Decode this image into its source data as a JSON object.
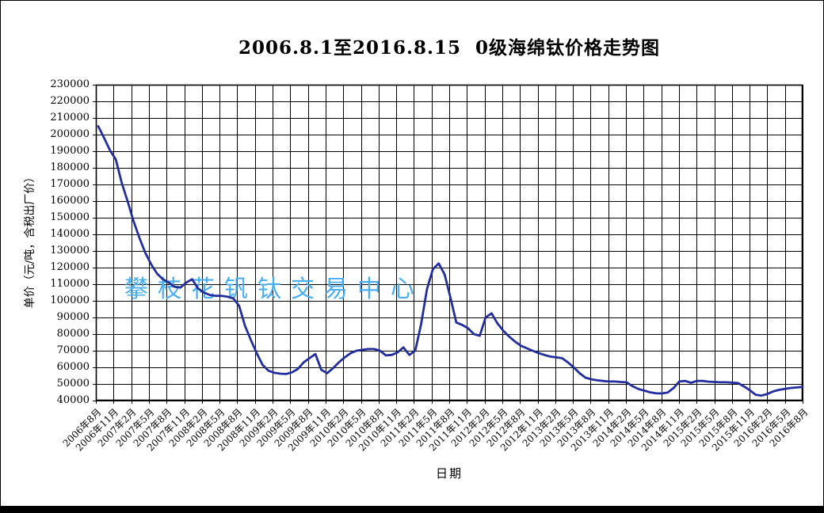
{
  "page": {
    "background": "#ffffff",
    "border_color": "#000000",
    "bottom_bar_color": "#000000"
  },
  "chart": {
    "title": "2006.8.1至2016.8.15  0级海绵钛价格走势图",
    "x_axis_title": "日期",
    "y_axis_title": "单价（元/吨，含税出厂价）",
    "watermark": {
      "text": "攀枝花钒钛交易中心",
      "color": "#49AFF2"
    }
  },
  "chart_data": {
    "type": "line",
    "title": "2006.8.1至2016.8.15  0级海绵钛价格走势图",
    "xlabel": "日期",
    "ylabel": "单价（元/吨，含税出厂价）",
    "ylim": [
      40000,
      230000
    ],
    "ytick_interval": 10000,
    "grid": "both",
    "legend": "none",
    "line_color": "#222E9E",
    "grid_color": "#000000",
    "y_tick_labels": [
      "230000",
      "220000",
      "210000",
      "200000",
      "190000",
      "180000",
      "170000",
      "160000",
      "150000",
      "140000",
      "130000",
      "120000",
      "110000",
      "100000",
      "90000",
      "80000",
      "70000",
      "60000",
      "50000",
      "40000"
    ],
    "x_tick_labels": [
      "2006年8月",
      "2006年11月",
      "2007年2月",
      "2007年5月",
      "2007年8月",
      "2007年11月",
      "2008年2月",
      "2008年5月",
      "2008年8月",
      "2008年11月",
      "2009年2月",
      "2009年5月",
      "2009年8月",
      "2009年11月",
      "2010年2月",
      "2010年5月",
      "2010年8月",
      "2010年11月",
      "2011年2月",
      "2011年5月",
      "2011年8月",
      "2011年11月",
      "2012年2月",
      "2012年5月",
      "2012年8月",
      "2012年11月",
      "2013年2月",
      "2013年5月",
      "2013年8月",
      "2013年11月",
      "2014年2月",
      "2014年5月",
      "2014年8月",
      "2014年11月",
      "2015年2月",
      "2015年5月",
      "2015年8月",
      "2015年11月",
      "2016年2月",
      "2016年5月",
      "2016年8月"
    ],
    "series": [
      {
        "name": "0级海绵钛价格",
        "x": [
          "2006-08",
          "2006-09",
          "2006-10",
          "2006-11",
          "2006-12",
          "2007-01",
          "2007-02",
          "2007-03",
          "2007-04",
          "2007-05",
          "2007-06",
          "2007-07",
          "2007-08",
          "2007-09",
          "2007-10",
          "2007-11",
          "2007-12",
          "2008-01",
          "2008-02",
          "2008-03",
          "2008-04",
          "2008-05",
          "2008-06",
          "2008-07",
          "2008-08",
          "2008-09",
          "2008-10",
          "2008-11",
          "2008-12",
          "2009-01",
          "2009-02",
          "2009-03",
          "2009-04",
          "2009-05",
          "2009-06",
          "2009-07",
          "2009-08",
          "2009-09",
          "2009-10",
          "2009-11",
          "2009-12",
          "2010-01",
          "2010-02",
          "2010-03",
          "2010-04",
          "2010-05",
          "2010-06",
          "2010-07",
          "2010-08",
          "2010-09",
          "2010-10",
          "2010-11",
          "2010-12",
          "2011-01",
          "2011-02",
          "2011-03",
          "2011-04",
          "2011-05",
          "2011-06",
          "2011-07",
          "2011-08",
          "2011-09",
          "2011-10",
          "2011-11",
          "2011-12",
          "2012-01",
          "2012-02",
          "2012-03",
          "2012-04",
          "2012-05",
          "2012-06",
          "2012-07",
          "2012-08",
          "2012-09",
          "2012-10",
          "2012-11",
          "2012-12",
          "2013-01",
          "2013-02",
          "2013-03",
          "2013-04",
          "2013-05",
          "2013-06",
          "2013-07",
          "2013-08",
          "2013-09",
          "2013-10",
          "2013-11",
          "2013-12",
          "2014-01",
          "2014-02",
          "2014-03",
          "2014-04",
          "2014-05",
          "2014-06",
          "2014-07",
          "2014-08",
          "2014-09",
          "2014-10",
          "2014-11",
          "2014-12",
          "2015-01",
          "2015-02",
          "2015-03",
          "2015-04",
          "2015-05",
          "2015-06",
          "2015-07",
          "2015-08",
          "2015-09",
          "2015-10",
          "2015-11",
          "2015-12",
          "2016-01",
          "2016-02",
          "2016-03",
          "2016-04",
          "2016-05",
          "2016-06",
          "2016-07",
          "2016-08"
        ],
        "values": [
          205000,
          198000,
          190500,
          185000,
          171000,
          160000,
          148000,
          138000,
          129000,
          122000,
          116500,
          113000,
          111000,
          108500,
          108000,
          111000,
          113000,
          107500,
          105000,
          103500,
          103000,
          103000,
          102500,
          101500,
          97000,
          85000,
          76500,
          68500,
          61500,
          58000,
          56700,
          56200,
          56000,
          57000,
          59000,
          63000,
          65500,
          68000,
          58500,
          56500,
          59500,
          63000,
          66000,
          68500,
          70000,
          70500,
          71000,
          71000,
          70000,
          67200,
          67500,
          69000,
          72000,
          67500,
          70000,
          86000,
          107000,
          119000,
          122500,
          116000,
          102000,
          87000,
          85500,
          83500,
          80000,
          79000,
          90000,
          92500,
          86500,
          82000,
          78500,
          75500,
          73000,
          71500,
          70000,
          68600,
          67500,
          66500,
          66000,
          65500,
          63000,
          60000,
          56500,
          53800,
          52800,
          52200,
          51800,
          51500,
          51500,
          51200,
          51000,
          48700,
          47000,
          46000,
          45000,
          44400,
          44300,
          44800,
          47500,
          51500,
          51800,
          50700,
          51800,
          51800,
          51400,
          51200,
          51000,
          51000,
          50800,
          50500,
          48500,
          46300,
          43500,
          43000,
          44000,
          45500,
          46500,
          47000,
          47600,
          47900,
          48200
        ]
      }
    ]
  }
}
